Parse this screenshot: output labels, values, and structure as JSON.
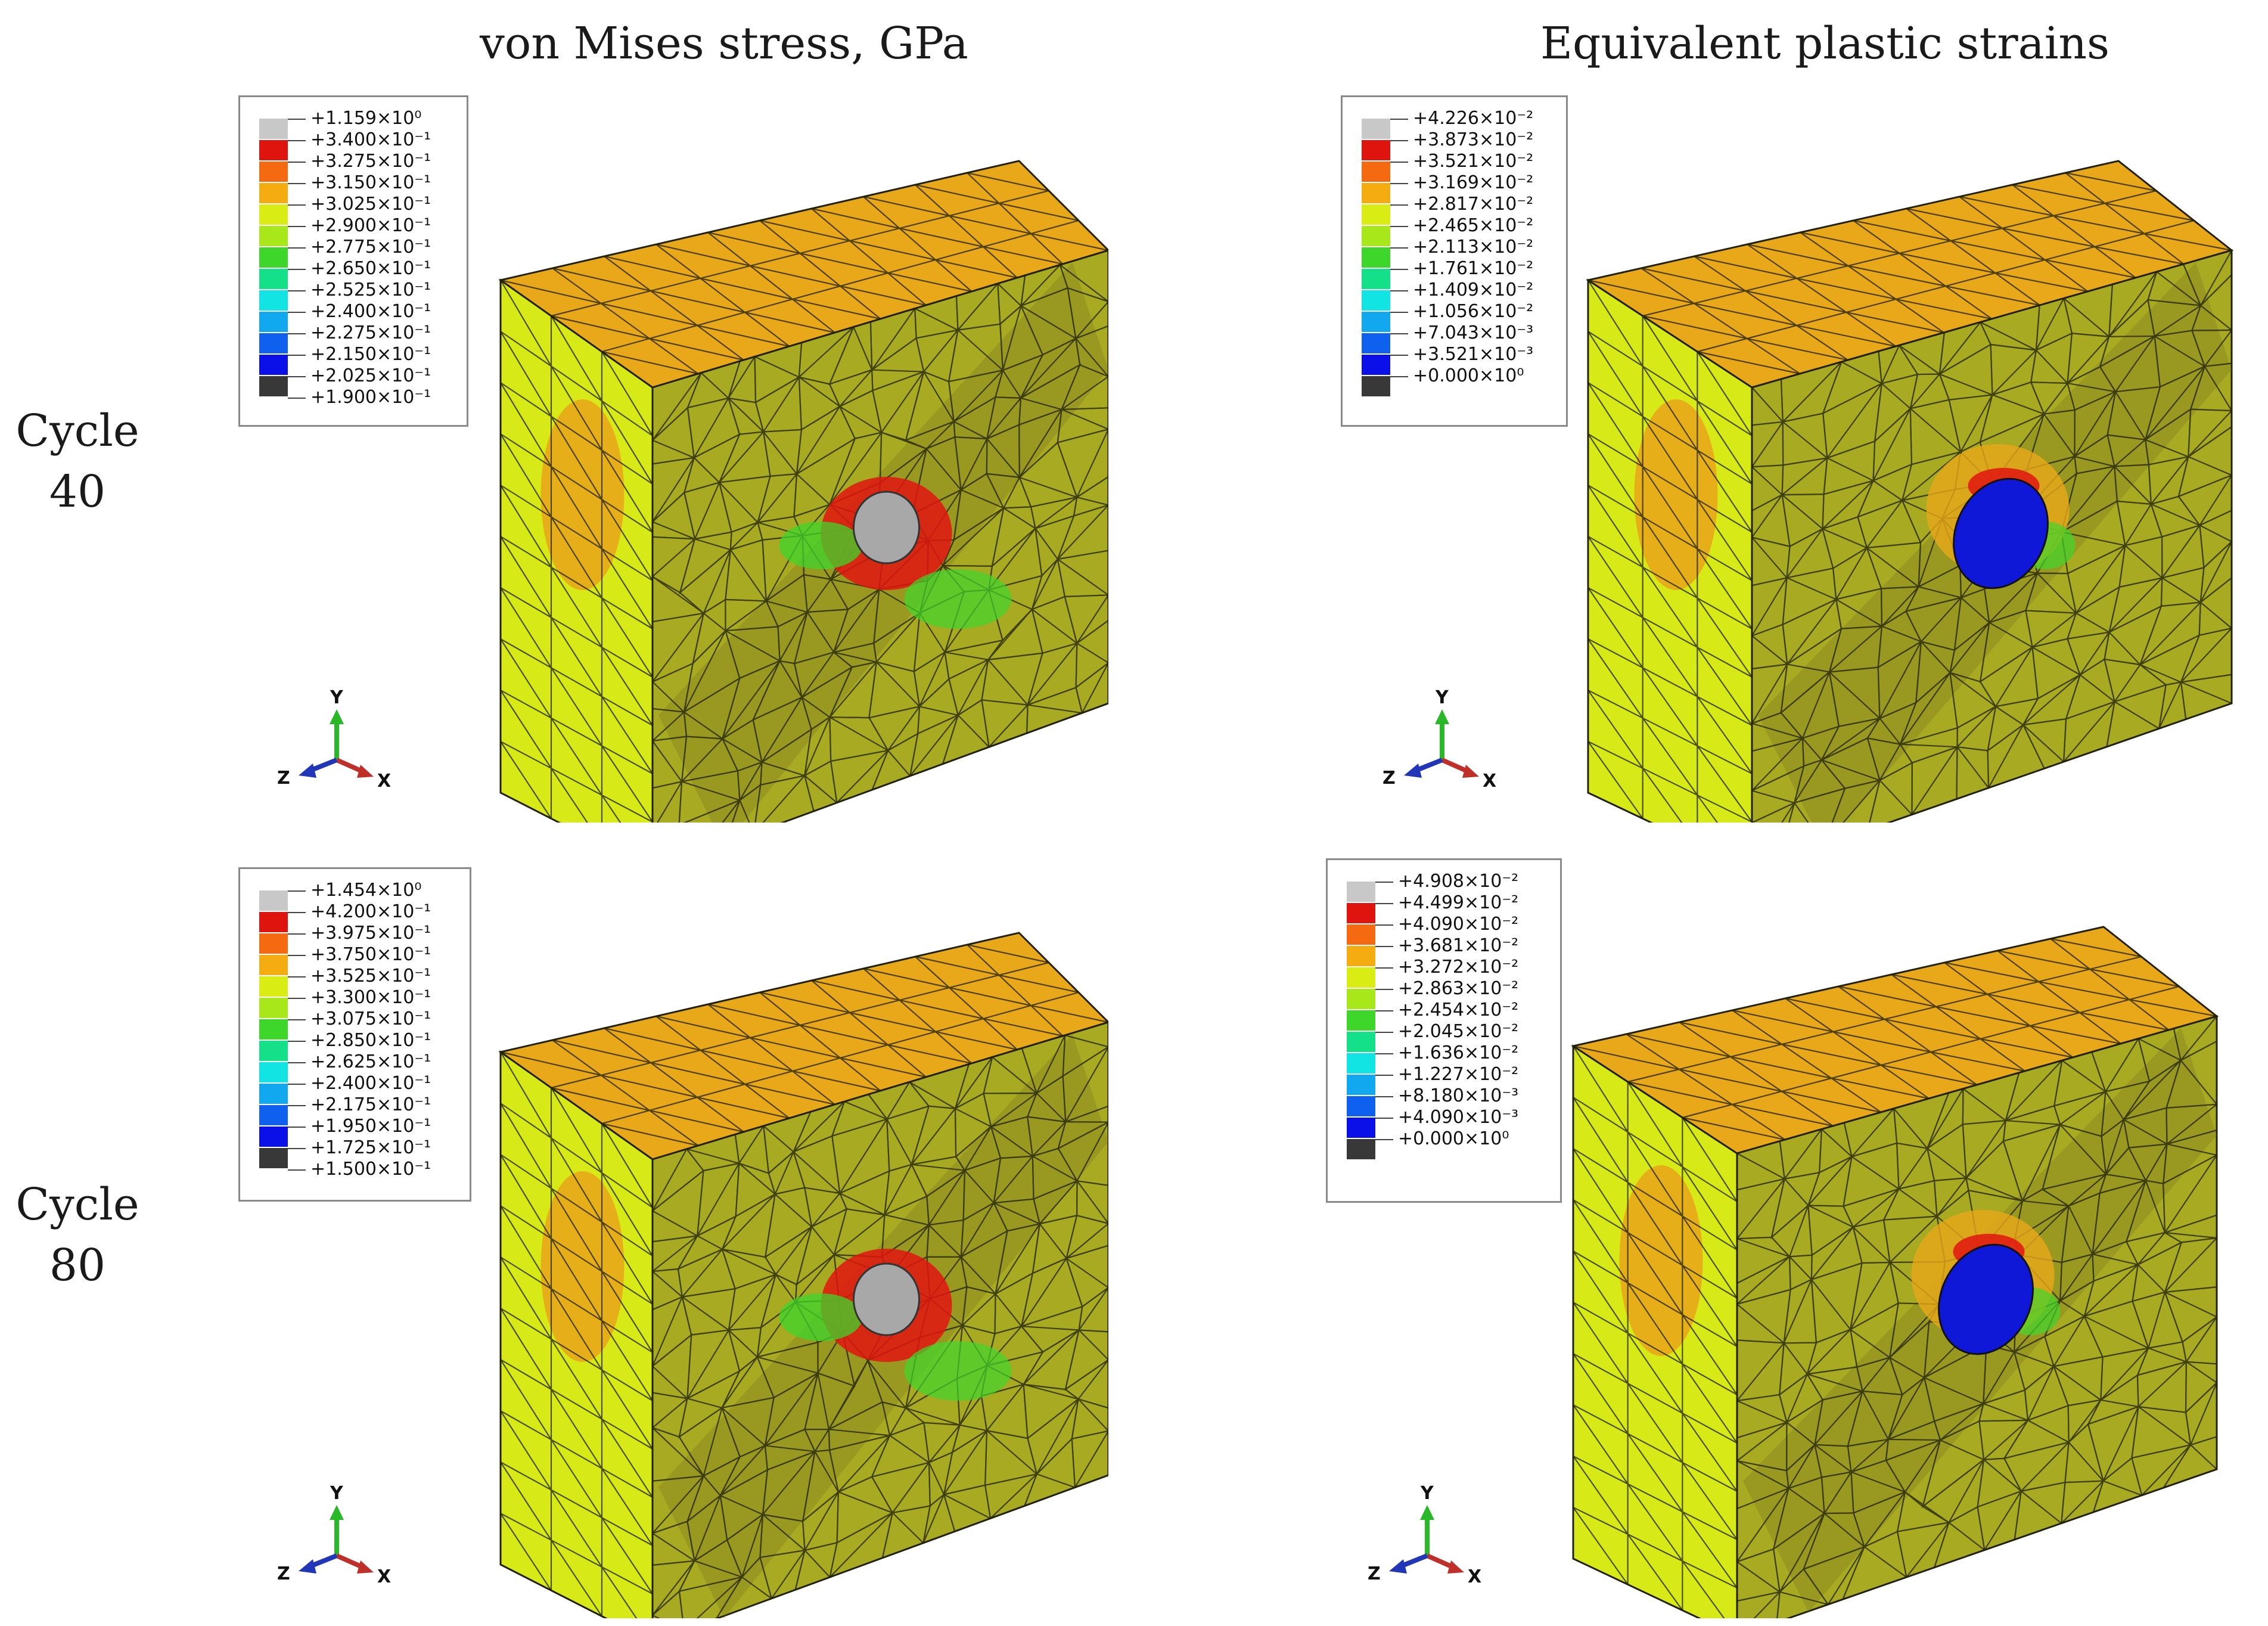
{
  "columns": {
    "left_title": "von Mises stress, GPa",
    "right_title": "Equivalent plastic strains"
  },
  "rows": [
    {
      "label_line1": "Cycle",
      "label_line2": "40"
    },
    {
      "label_line1": "Cycle",
      "label_line2": "80"
    }
  ],
  "colors": {
    "bands": [
      "#c8c8c8",
      "#e0140f",
      "#f56a10",
      "#f5ac10",
      "#d9ec14",
      "#a8e81a",
      "#3fd62c",
      "#15e08a",
      "#12e4e4",
      "#12a8f0",
      "#1060f0",
      "#0c10e8",
      "#383838"
    ],
    "axis_x": "#c0302a",
    "axis_y": "#28b828",
    "axis_z": "#2236b8"
  },
  "legends": {
    "stress_c40": [
      "+1.159×10⁰",
      "+3.400×10⁻¹",
      "+3.275×10⁻¹",
      "+3.150×10⁻¹",
      "+3.025×10⁻¹",
      "+2.900×10⁻¹",
      "+2.775×10⁻¹",
      "+2.650×10⁻¹",
      "+2.525×10⁻¹",
      "+2.400×10⁻¹",
      "+2.275×10⁻¹",
      "+2.150×10⁻¹",
      "+2.025×10⁻¹",
      "+1.900×10⁻¹"
    ],
    "strain_c40": [
      "+4.226×10⁻²",
      "+3.873×10⁻²",
      "+3.521×10⁻²",
      "+3.169×10⁻²",
      "+2.817×10⁻²",
      "+2.465×10⁻²",
      "+2.113×10⁻²",
      "+1.761×10⁻²",
      "+1.409×10⁻²",
      "+1.056×10⁻²",
      "+7.043×10⁻³",
      "+3.521×10⁻³",
      "+0.000×10⁰"
    ],
    "stress_c80": [
      "+1.454×10⁰",
      "+4.200×10⁻¹",
      "+3.975×10⁻¹",
      "+3.750×10⁻¹",
      "+3.525×10⁻¹",
      "+3.300×10⁻¹",
      "+3.075×10⁻¹",
      "+2.850×10⁻¹",
      "+2.625×10⁻¹",
      "+2.400×10⁻¹",
      "+2.175×10⁻¹",
      "+1.950×10⁻¹",
      "+1.725×10⁻¹",
      "+1.500×10⁻¹"
    ],
    "strain_c80": [
      "+4.908×10⁻²",
      "+4.499×10⁻²",
      "+4.090×10⁻²",
      "+3.681×10⁻²",
      "+3.272×10⁻²",
      "+2.863×10⁻²",
      "+2.454×10⁻²",
      "+2.045×10⁻²",
      "+1.636×10⁻²",
      "+1.227×10⁻²",
      "+8.180×10⁻³",
      "+4.090×10⁻³",
      "+0.000×10⁰"
    ]
  },
  "triad": {
    "x": "X",
    "y": "Y",
    "z": "Z"
  }
}
